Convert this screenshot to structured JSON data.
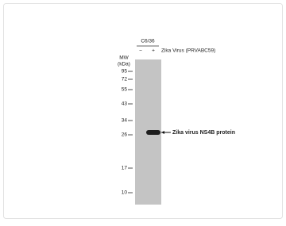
{
  "header": {
    "cell_line": "C6/36",
    "minus": "−",
    "plus": "+",
    "treatment": "Zika Virus (PRVABC59)"
  },
  "ladder": {
    "title": "MW",
    "unit": "(kDa)",
    "markers": [
      "95",
      "72",
      "55",
      "43",
      "34",
      "26",
      "17",
      "10"
    ]
  },
  "band": {
    "label": "Zika virus NS4B protein"
  }
}
